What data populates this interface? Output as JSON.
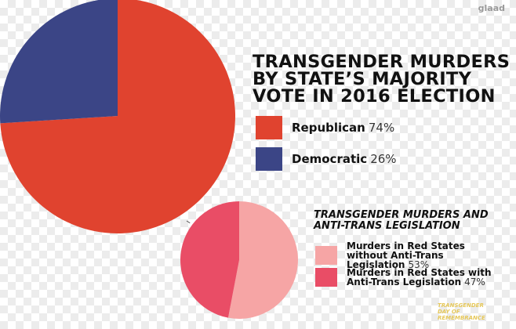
{
  "chart_data": [
    {
      "type": "pie",
      "title": "TRANSGENDER MURDERS BY STATE’S MAJORITY VOTE IN 2016 ELECTION",
      "categories": [
        "Republican",
        "Democratic"
      ],
      "values": [
        74,
        26
      ],
      "value_labels": [
        "74%",
        "26%"
      ],
      "colors": [
        "#e0432f",
        "#3b4586"
      ]
    },
    {
      "type": "pie",
      "title": "TRANSGENDER MURDERS AND ANTI-TRANS LEGISLATION",
      "categories": [
        "Murders in Red States without Anti-Trans Legislation",
        "Murders in Red States with Anti-Trans Legislation"
      ],
      "values": [
        53,
        47
      ],
      "value_labels": [
        "53%",
        "47%"
      ],
      "colors": [
        "#f6a5a5",
        "#e94d66"
      ]
    }
  ],
  "logo": "glaad",
  "footer": "TRANSGENDER DAY OF REMEMBRANCE"
}
